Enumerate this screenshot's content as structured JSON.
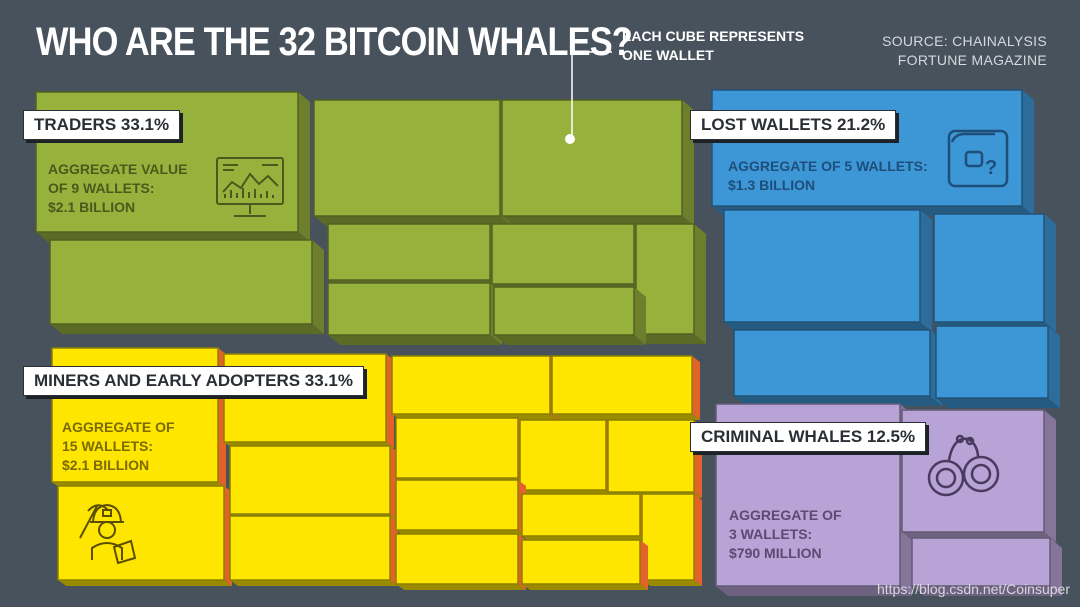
{
  "title": "WHO ARE THE 32 BITCOIN WHALES?",
  "note": "EACH CUBE REPRESENTS\nONE WALLET",
  "source": "SOURCE: CHAINALYSIS\nFORTUNE MAGAZINE",
  "watermark": "https://blog.csdn.net/Coinsuper",
  "colors": {
    "background": "#47525c",
    "traders": "#97b13d",
    "lost": "#3d97d7",
    "miners": "#ffe600",
    "criminal": "#b7a3d5"
  },
  "groups": {
    "traders": {
      "label": "TRADERS",
      "percent": "33.1%",
      "desc": "AGGREGATE VALUE\nOF 9 WALLETS:",
      "value": "$2.1 BILLION",
      "icon": "monitor-chart-icon"
    },
    "lost": {
      "label": "LOST WALLETS",
      "percent": "21.2%",
      "desc": "AGGREGATE OF 5 WALLETS:",
      "value": "$1.3 BILLION",
      "icon": "wallet-question-icon"
    },
    "miners": {
      "label": "MINERS AND EARLY ADOPTERS",
      "percent": "33.1%",
      "desc": "AGGREGATE OF\n15 WALLETS:",
      "value": "$2.1 BILLION",
      "icon": "miner-icon"
    },
    "criminal": {
      "label": "CRIMINAL WHALES",
      "percent": "12.5%",
      "desc": "AGGREGATE OF\n3 WALLETS:",
      "value": "$790 MILLION",
      "icon": "handcuffs-icon"
    }
  },
  "chart_data": {
    "type": "treemap",
    "title": "WHO ARE THE 32 BITCOIN WHALES?",
    "unit_note": "EACH CUBE REPRESENTS ONE WALLET",
    "series": [
      {
        "name": "TRADERS",
        "share_percent": 33.1,
        "wallets": 9,
        "aggregate_value_usd_billion": 2.1
      },
      {
        "name": "LOST WALLETS",
        "share_percent": 21.2,
        "wallets": 5,
        "aggregate_value_usd_billion": 1.3
      },
      {
        "name": "MINERS AND EARLY ADOPTERS",
        "share_percent": 33.1,
        "wallets": 15,
        "aggregate_value_usd_billion": 2.1
      },
      {
        "name": "CRIMINAL WHALES",
        "share_percent": 12.5,
        "wallets": 3,
        "aggregate_value_usd_billion": 0.79
      }
    ]
  }
}
